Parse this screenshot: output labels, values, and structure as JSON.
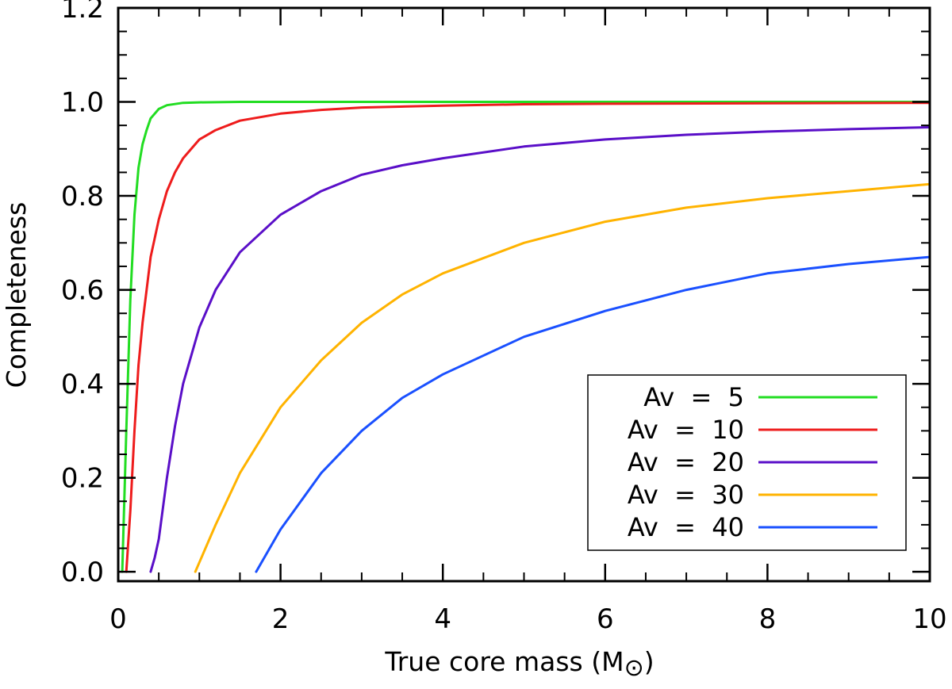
{
  "chart_data": {
    "type": "line",
    "xlabel": "True core mass (M",
    "xlabel_symbol": "⊙",
    "xlabel_close": ")",
    "ylabel": "Completeness",
    "xlim": [
      0,
      10
    ],
    "ylim": [
      -0.02,
      1.2
    ],
    "xticks": [
      0,
      2,
      4,
      6,
      8,
      10
    ],
    "xtick_labels": [
      "0",
      "2",
      "4",
      "6",
      "8",
      "10"
    ],
    "yticks": [
      0.0,
      0.2,
      0.4,
      0.6,
      0.8,
      1.0,
      1.2
    ],
    "ytick_labels": [
      "0.0",
      "0.2",
      "0.4",
      "0.6",
      "0.8",
      "1.0",
      "1.2"
    ],
    "grid": false,
    "legend_position": "bottom-right",
    "series": [
      {
        "name": "Av  =  5",
        "color": "#22dd22",
        "x": [
          0.05,
          0.1,
          0.15,
          0.2,
          0.25,
          0.3,
          0.35,
          0.4,
          0.5,
          0.6,
          0.8,
          1.0,
          1.5,
          2,
          3,
          4,
          6,
          8,
          10
        ],
        "y": [
          0.0,
          0.3,
          0.58,
          0.76,
          0.86,
          0.91,
          0.94,
          0.965,
          0.985,
          0.993,
          0.998,
          0.999,
          1.0,
          1.0,
          1.0,
          1.0,
          1.0,
          1.0,
          1.0
        ]
      },
      {
        "name": "Av  =  10",
        "color": "#ee1c1c",
        "x": [
          0.1,
          0.15,
          0.2,
          0.25,
          0.3,
          0.4,
          0.5,
          0.6,
          0.7,
          0.8,
          1.0,
          1.2,
          1.5,
          2,
          2.5,
          3,
          4,
          5,
          6,
          8,
          10
        ],
        "y": [
          0.0,
          0.13,
          0.3,
          0.44,
          0.53,
          0.67,
          0.75,
          0.81,
          0.85,
          0.88,
          0.92,
          0.94,
          0.96,
          0.975,
          0.983,
          0.988,
          0.992,
          0.995,
          0.996,
          0.997,
          0.998
        ]
      },
      {
        "name": "Av  =  20",
        "color": "#5a0fc8",
        "x": [
          0.4,
          0.45,
          0.5,
          0.6,
          0.7,
          0.8,
          1.0,
          1.2,
          1.5,
          2,
          2.5,
          3,
          3.5,
          4,
          5,
          6,
          7,
          8,
          9,
          10
        ],
        "y": [
          0.0,
          0.03,
          0.07,
          0.2,
          0.31,
          0.4,
          0.52,
          0.6,
          0.68,
          0.76,
          0.81,
          0.845,
          0.865,
          0.88,
          0.905,
          0.92,
          0.93,
          0.937,
          0.942,
          0.946
        ]
      },
      {
        "name": "Av  =  30",
        "color": "#ffb300",
        "x": [
          0.95,
          1.0,
          1.2,
          1.5,
          2.0,
          2.5,
          3.0,
          3.5,
          4.0,
          5,
          6,
          7,
          8,
          9,
          10
        ],
        "y": [
          0.0,
          0.02,
          0.1,
          0.21,
          0.35,
          0.45,
          0.53,
          0.59,
          0.635,
          0.7,
          0.745,
          0.775,
          0.795,
          0.81,
          0.825
        ]
      },
      {
        "name": "Av  =  40",
        "color": "#1a50ff",
        "x": [
          1.7,
          1.8,
          2.0,
          2.5,
          3.0,
          3.5,
          4.0,
          5,
          6,
          7,
          8,
          9,
          10
        ],
        "y": [
          0.0,
          0.03,
          0.09,
          0.21,
          0.3,
          0.37,
          0.42,
          0.5,
          0.555,
          0.6,
          0.635,
          0.655,
          0.67
        ]
      }
    ]
  }
}
